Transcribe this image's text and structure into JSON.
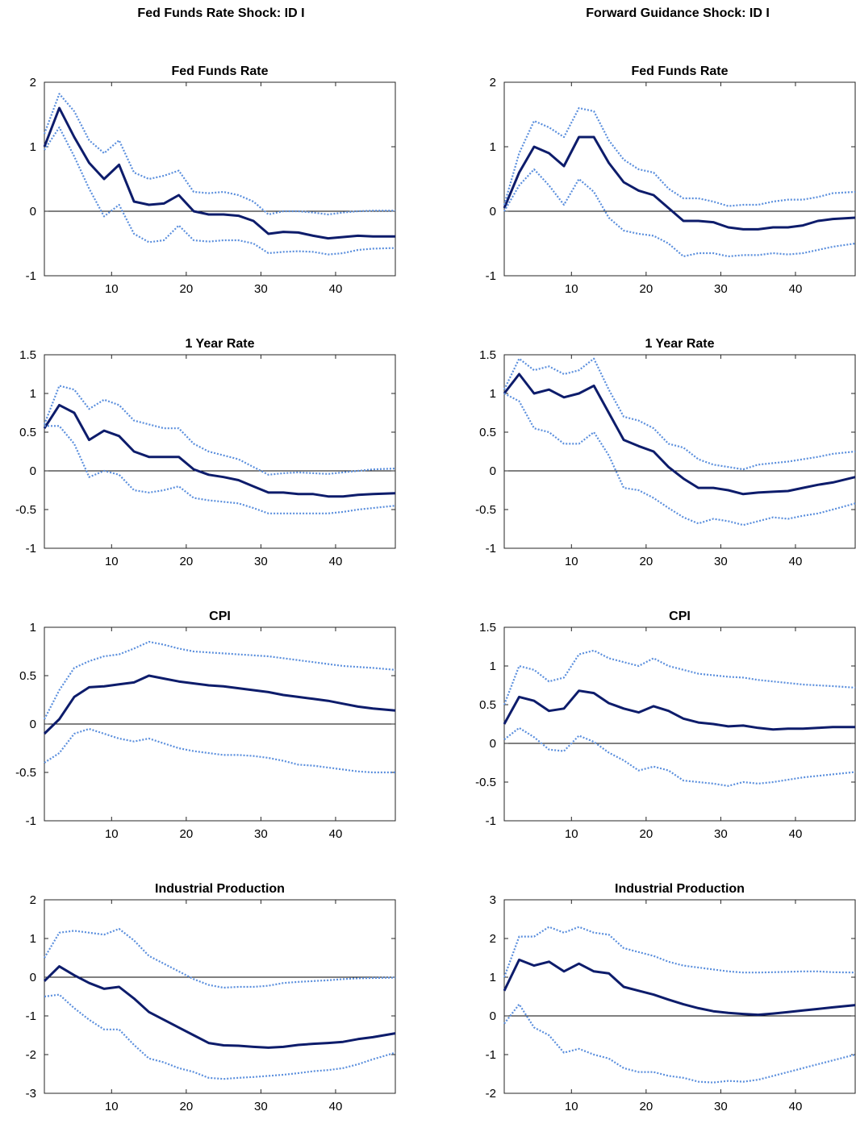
{
  "columns": [
    {
      "title": "Fed Funds Rate Shock: ID I"
    },
    {
      "title": "Forward Guidance Shock: ID I"
    }
  ],
  "colors": {
    "median": "#0d1c6b",
    "band": "#5b8fdd",
    "zero": "#000000",
    "axis": "#262626"
  },
  "chart_data": [
    {
      "type": "line",
      "title": "Fed Funds Rate",
      "xlim": [
        1,
        48
      ],
      "ylim": [
        -1,
        2
      ],
      "xticks": [
        10,
        20,
        30,
        40
      ],
      "yticks": [
        -1,
        0,
        1,
        2
      ],
      "grid": false,
      "x": [
        1,
        3,
        5,
        7,
        9,
        11,
        13,
        15,
        17,
        19,
        21,
        23,
        25,
        27,
        29,
        31,
        33,
        35,
        37,
        39,
        41,
        43,
        45,
        48
      ],
      "series": [
        {
          "values": [
            1.0,
            1.6,
            1.15,
            0.75,
            0.5,
            0.72,
            0.15,
            0.1,
            0.12,
            0.25,
            0.0,
            -0.05,
            -0.05,
            -0.07,
            -0.15,
            -0.35,
            -0.32,
            -0.33,
            -0.38,
            -0.42,
            -0.4,
            -0.38,
            -0.39,
            -0.39
          ]
        },
        {
          "values": [
            1.2,
            1.82,
            1.55,
            1.1,
            0.9,
            1.1,
            0.6,
            0.5,
            0.55,
            0.63,
            0.3,
            0.28,
            0.3,
            0.25,
            0.15,
            -0.05,
            0.0,
            0.0,
            -0.02,
            -0.05,
            -0.02,
            0.0,
            0.01,
            0.01
          ]
        },
        {
          "values": [
            0.95,
            1.3,
            0.85,
            0.35,
            -0.08,
            0.1,
            -0.35,
            -0.48,
            -0.45,
            -0.22,
            -0.45,
            -0.47,
            -0.45,
            -0.45,
            -0.5,
            -0.65,
            -0.63,
            -0.62,
            -0.63,
            -0.67,
            -0.65,
            -0.6,
            -0.58,
            -0.57
          ]
        }
      ]
    },
    {
      "type": "line",
      "title": "Fed Funds Rate",
      "xlim": [
        1,
        48
      ],
      "ylim": [
        -1,
        2
      ],
      "xticks": [
        10,
        20,
        30,
        40
      ],
      "yticks": [
        -1,
        0,
        1,
        2
      ],
      "grid": false,
      "x": [
        1,
        3,
        5,
        7,
        9,
        11,
        13,
        15,
        17,
        19,
        21,
        23,
        25,
        27,
        29,
        31,
        33,
        35,
        37,
        39,
        41,
        43,
        45,
        48
      ],
      "series": [
        {
          "values": [
            0.05,
            0.6,
            1.0,
            0.9,
            0.7,
            1.15,
            1.15,
            0.75,
            0.45,
            0.32,
            0.25,
            0.05,
            -0.15,
            -0.15,
            -0.17,
            -0.25,
            -0.28,
            -0.28,
            -0.25,
            -0.25,
            -0.22,
            -0.15,
            -0.12,
            -0.1
          ]
        },
        {
          "values": [
            0.1,
            0.9,
            1.4,
            1.3,
            1.15,
            1.6,
            1.55,
            1.1,
            0.8,
            0.65,
            0.6,
            0.35,
            0.2,
            0.2,
            0.15,
            0.08,
            0.1,
            0.1,
            0.15,
            0.18,
            0.18,
            0.22,
            0.28,
            0.3
          ]
        },
        {
          "values": [
            0.0,
            0.4,
            0.65,
            0.4,
            0.1,
            0.5,
            0.3,
            -0.1,
            -0.3,
            -0.35,
            -0.38,
            -0.5,
            -0.7,
            -0.65,
            -0.65,
            -0.7,
            -0.68,
            -0.68,
            -0.65,
            -0.67,
            -0.65,
            -0.6,
            -0.55,
            -0.5
          ]
        }
      ]
    },
    {
      "type": "line",
      "title": "1 Year Rate",
      "xlim": [
        1,
        48
      ],
      "ylim": [
        -1,
        1.5
      ],
      "xticks": [
        10,
        20,
        30,
        40
      ],
      "yticks": [
        -1,
        -0.5,
        0,
        0.5,
        1,
        1.5
      ],
      "grid": false,
      "x": [
        1,
        3,
        5,
        7,
        9,
        11,
        13,
        15,
        17,
        19,
        21,
        23,
        25,
        27,
        29,
        31,
        33,
        35,
        37,
        39,
        41,
        43,
        45,
        48
      ],
      "series": [
        {
          "values": [
            0.55,
            0.85,
            0.75,
            0.4,
            0.52,
            0.45,
            0.25,
            0.18,
            0.18,
            0.18,
            0.02,
            -0.05,
            -0.08,
            -0.12,
            -0.2,
            -0.28,
            -0.28,
            -0.3,
            -0.3,
            -0.33,
            -0.33,
            -0.31,
            -0.3,
            -0.29
          ]
        },
        {
          "values": [
            0.6,
            1.1,
            1.05,
            0.8,
            0.92,
            0.85,
            0.65,
            0.6,
            0.55,
            0.55,
            0.35,
            0.25,
            0.2,
            0.15,
            0.05,
            -0.05,
            -0.03,
            -0.02,
            -0.03,
            -0.04,
            -0.02,
            0.0,
            0.02,
            0.03
          ]
        },
        {
          "values": [
            0.58,
            0.58,
            0.35,
            -0.08,
            0.0,
            -0.05,
            -0.25,
            -0.28,
            -0.25,
            -0.2,
            -0.35,
            -0.38,
            -0.4,
            -0.42,
            -0.48,
            -0.55,
            -0.55,
            -0.55,
            -0.55,
            -0.55,
            -0.53,
            -0.5,
            -0.48,
            -0.45
          ]
        }
      ]
    },
    {
      "type": "line",
      "title": "1 Year Rate",
      "xlim": [
        1,
        48
      ],
      "ylim": [
        -1,
        1.5
      ],
      "xticks": [
        10,
        20,
        30,
        40
      ],
      "yticks": [
        -1,
        -0.5,
        0,
        0.5,
        1,
        1.5
      ],
      "grid": false,
      "x": [
        1,
        3,
        5,
        7,
        9,
        11,
        13,
        15,
        17,
        19,
        21,
        23,
        25,
        27,
        29,
        31,
        33,
        35,
        37,
        39,
        41,
        43,
        45,
        48
      ],
      "series": [
        {
          "values": [
            1.0,
            1.25,
            1.0,
            1.05,
            0.95,
            1.0,
            1.1,
            0.75,
            0.4,
            0.32,
            0.25,
            0.05,
            -0.1,
            -0.22,
            -0.22,
            -0.25,
            -0.3,
            -0.28,
            -0.27,
            -0.26,
            -0.22,
            -0.18,
            -0.15,
            -0.08
          ]
        },
        {
          "values": [
            1.05,
            1.45,
            1.3,
            1.35,
            1.25,
            1.3,
            1.45,
            1.05,
            0.7,
            0.65,
            0.55,
            0.35,
            0.3,
            0.15,
            0.08,
            0.05,
            0.02,
            0.08,
            0.1,
            0.12,
            0.15,
            0.18,
            0.22,
            0.25
          ]
        },
        {
          "values": [
            1.0,
            0.9,
            0.55,
            0.5,
            0.35,
            0.35,
            0.5,
            0.2,
            -0.22,
            -0.25,
            -0.35,
            -0.48,
            -0.6,
            -0.68,
            -0.62,
            -0.65,
            -0.7,
            -0.65,
            -0.6,
            -0.62,
            -0.58,
            -0.55,
            -0.5,
            -0.42
          ]
        }
      ]
    },
    {
      "type": "line",
      "title": "CPI",
      "xlim": [
        1,
        48
      ],
      "ylim": [
        -1,
        1
      ],
      "xticks": [
        10,
        20,
        30,
        40
      ],
      "yticks": [
        -1,
        -0.5,
        0,
        0.5,
        1
      ],
      "grid": false,
      "x": [
        1,
        3,
        5,
        7,
        9,
        11,
        13,
        15,
        17,
        19,
        21,
        23,
        25,
        27,
        29,
        31,
        33,
        35,
        37,
        39,
        41,
        43,
        45,
        48
      ],
      "series": [
        {
          "values": [
            -0.1,
            0.05,
            0.28,
            0.38,
            0.39,
            0.41,
            0.43,
            0.5,
            0.47,
            0.44,
            0.42,
            0.4,
            0.39,
            0.37,
            0.35,
            0.33,
            0.3,
            0.28,
            0.26,
            0.24,
            0.21,
            0.18,
            0.16,
            0.14
          ]
        },
        {
          "values": [
            0.05,
            0.35,
            0.58,
            0.65,
            0.7,
            0.72,
            0.78,
            0.85,
            0.82,
            0.78,
            0.75,
            0.74,
            0.73,
            0.72,
            0.71,
            0.7,
            0.68,
            0.66,
            0.64,
            0.62,
            0.6,
            0.59,
            0.58,
            0.56
          ]
        },
        {
          "values": [
            -0.4,
            -0.3,
            -0.1,
            -0.05,
            -0.1,
            -0.15,
            -0.18,
            -0.15,
            -0.2,
            -0.25,
            -0.28,
            -0.3,
            -0.32,
            -0.32,
            -0.33,
            -0.35,
            -0.38,
            -0.42,
            -0.43,
            -0.45,
            -0.47,
            -0.49,
            -0.5,
            -0.5
          ]
        }
      ]
    },
    {
      "type": "line",
      "title": "CPI",
      "xlim": [
        1,
        48
      ],
      "ylim": [
        -1,
        1.5
      ],
      "xticks": [
        10,
        20,
        30,
        40
      ],
      "yticks": [
        -1,
        -0.5,
        0,
        0.5,
        1,
        1.5
      ],
      "grid": false,
      "x": [
        1,
        3,
        5,
        7,
        9,
        11,
        13,
        15,
        17,
        19,
        21,
        23,
        25,
        27,
        29,
        31,
        33,
        35,
        37,
        39,
        41,
        43,
        45,
        48
      ],
      "series": [
        {
          "values": [
            0.25,
            0.6,
            0.55,
            0.42,
            0.45,
            0.68,
            0.65,
            0.52,
            0.45,
            0.4,
            0.48,
            0.42,
            0.32,
            0.27,
            0.25,
            0.22,
            0.23,
            0.2,
            0.18,
            0.19,
            0.19,
            0.2,
            0.21,
            0.21
          ]
        },
        {
          "values": [
            0.5,
            1.0,
            0.95,
            0.8,
            0.85,
            1.15,
            1.2,
            1.1,
            1.05,
            1.0,
            1.1,
            1.0,
            0.95,
            0.9,
            0.88,
            0.86,
            0.85,
            0.82,
            0.8,
            0.78,
            0.76,
            0.75,
            0.74,
            0.72
          ]
        },
        {
          "values": [
            0.05,
            0.2,
            0.08,
            -0.08,
            -0.1,
            0.1,
            0.02,
            -0.12,
            -0.22,
            -0.35,
            -0.3,
            -0.35,
            -0.48,
            -0.5,
            -0.52,
            -0.55,
            -0.5,
            -0.52,
            -0.5,
            -0.47,
            -0.44,
            -0.42,
            -0.4,
            -0.37
          ]
        }
      ]
    },
    {
      "type": "line",
      "title": "Industrial Production",
      "xlim": [
        1,
        48
      ],
      "ylim": [
        -3,
        2
      ],
      "xticks": [
        10,
        20,
        30,
        40
      ],
      "yticks": [
        -3,
        -2,
        -1,
        0,
        1,
        2
      ],
      "grid": false,
      "x": [
        1,
        3,
        5,
        7,
        9,
        11,
        13,
        15,
        17,
        19,
        21,
        23,
        25,
        27,
        29,
        31,
        33,
        35,
        37,
        39,
        41,
        43,
        45,
        48
      ],
      "series": [
        {
          "values": [
            -0.1,
            0.28,
            0.05,
            -0.15,
            -0.3,
            -0.25,
            -0.55,
            -0.9,
            -1.1,
            -1.3,
            -1.5,
            -1.7,
            -1.76,
            -1.77,
            -1.8,
            -1.82,
            -1.8,
            -1.75,
            -1.72,
            -1.7,
            -1.67,
            -1.6,
            -1.55,
            -1.45
          ]
        },
        {
          "values": [
            0.5,
            1.15,
            1.2,
            1.15,
            1.1,
            1.25,
            0.95,
            0.55,
            0.35,
            0.15,
            -0.05,
            -0.2,
            -0.27,
            -0.25,
            -0.25,
            -0.22,
            -0.15,
            -0.12,
            -0.1,
            -0.08,
            -0.05,
            -0.03,
            -0.02,
            -0.01
          ]
        },
        {
          "values": [
            -0.5,
            -0.45,
            -0.8,
            -1.1,
            -1.35,
            -1.35,
            -1.75,
            -2.1,
            -2.2,
            -2.35,
            -2.45,
            -2.6,
            -2.63,
            -2.6,
            -2.58,
            -2.55,
            -2.52,
            -2.48,
            -2.43,
            -2.4,
            -2.35,
            -2.25,
            -2.12,
            -1.95
          ]
        }
      ]
    },
    {
      "type": "line",
      "title": "Industrial Production",
      "xlim": [
        1,
        48
      ],
      "ylim": [
        -2,
        3
      ],
      "xticks": [
        10,
        20,
        30,
        40
      ],
      "yticks": [
        -2,
        -1,
        0,
        1,
        2,
        3
      ],
      "grid": false,
      "x": [
        1,
        3,
        5,
        7,
        9,
        11,
        13,
        15,
        17,
        19,
        21,
        23,
        25,
        27,
        29,
        31,
        33,
        35,
        37,
        39,
        41,
        43,
        45,
        48
      ],
      "series": [
        {
          "values": [
            0.65,
            1.45,
            1.3,
            1.4,
            1.15,
            1.35,
            1.15,
            1.1,
            0.75,
            0.65,
            0.55,
            0.42,
            0.3,
            0.2,
            0.12,
            0.08,
            0.05,
            0.03,
            0.06,
            0.1,
            0.14,
            0.18,
            0.22,
            0.28
          ]
        },
        {
          "values": [
            1.0,
            2.05,
            2.05,
            2.3,
            2.15,
            2.3,
            2.15,
            2.1,
            1.75,
            1.65,
            1.55,
            1.4,
            1.3,
            1.25,
            1.2,
            1.15,
            1.12,
            1.12,
            1.13,
            1.14,
            1.15,
            1.15,
            1.13,
            1.12
          ]
        },
        {
          "values": [
            -0.2,
            0.3,
            -0.3,
            -0.5,
            -0.95,
            -0.85,
            -1.0,
            -1.1,
            -1.35,
            -1.45,
            -1.45,
            -1.55,
            -1.6,
            -1.7,
            -1.72,
            -1.68,
            -1.7,
            -1.65,
            -1.55,
            -1.45,
            -1.35,
            -1.25,
            -1.15,
            -1.0
          ]
        }
      ]
    }
  ]
}
